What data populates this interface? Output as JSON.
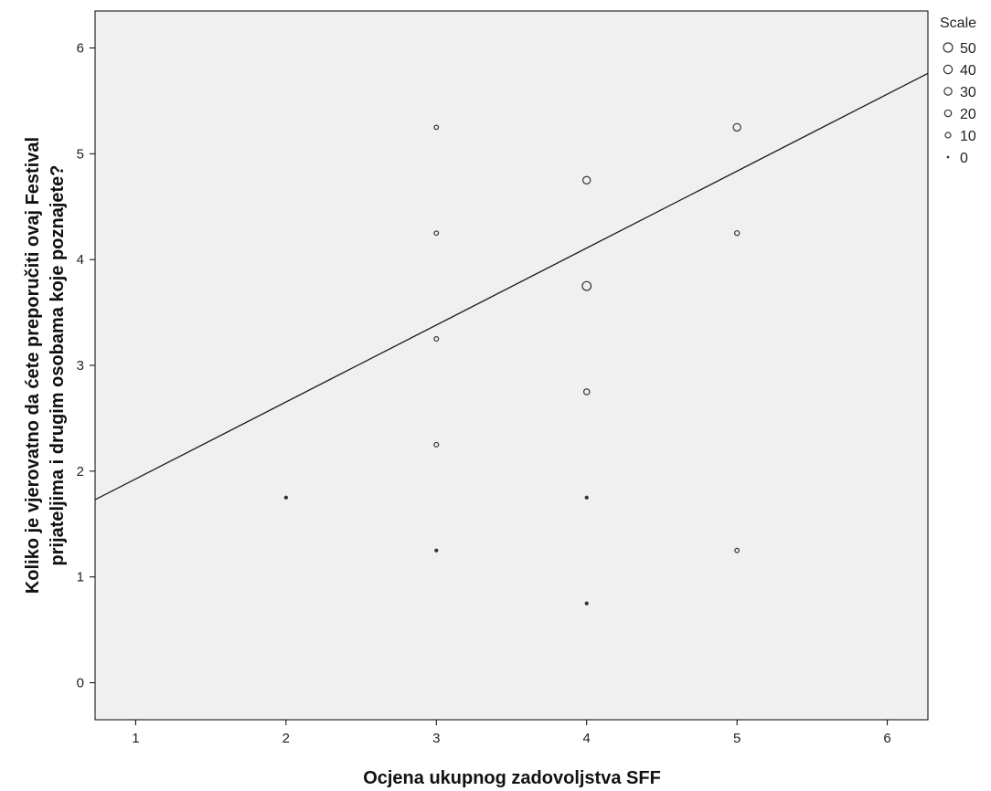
{
  "chart_data": {
    "type": "scatter",
    "xlabel": "Ocjena ukupnog zadovoljstva SFF",
    "ylabel_lines": [
      "Koliko je vjerovatno da ćete preporučiti ovaj Festival",
      "prijateljima i drugim osobama koje poznajete?"
    ],
    "xlim": [
      0.73,
      6.27
    ],
    "ylim": [
      -0.35,
      6.35
    ],
    "xticks": [
      1,
      2,
      3,
      4,
      5,
      6
    ],
    "yticks": [
      0,
      1,
      2,
      3,
      4,
      5,
      6
    ],
    "grid": false,
    "plot_background": "#f0f0f0",
    "fit_line": {
      "x": [
        0.73,
        6.27
      ],
      "y": [
        1.73,
        5.76
      ]
    },
    "points": [
      {
        "x": 2,
        "y": 1.75,
        "size": 2
      },
      {
        "x": 3,
        "y": 5.25,
        "size": 3
      },
      {
        "x": 3,
        "y": 4.25,
        "size": 3
      },
      {
        "x": 3,
        "y": 3.25,
        "size": 4
      },
      {
        "x": 3,
        "y": 2.25,
        "size": 4
      },
      {
        "x": 3,
        "y": 1.25,
        "size": 2
      },
      {
        "x": 4,
        "y": 4.75,
        "size": 28
      },
      {
        "x": 4,
        "y": 3.75,
        "size": 45
      },
      {
        "x": 4,
        "y": 2.75,
        "size": 12
      },
      {
        "x": 4,
        "y": 1.75,
        "size": 2
      },
      {
        "x": 4,
        "y": 0.75,
        "size": 2
      },
      {
        "x": 5,
        "y": 5.25,
        "size": 28
      },
      {
        "x": 5,
        "y": 4.25,
        "size": 5
      },
      {
        "x": 5,
        "y": 1.25,
        "size": 3
      }
    ],
    "legend": {
      "title": "Scale",
      "placement": "right",
      "entries": [
        {
          "label": "50",
          "size": 50
        },
        {
          "label": "40",
          "size": 40
        },
        {
          "label": "30",
          "size": 30
        },
        {
          "label": "20",
          "size": 20
        },
        {
          "label": "10",
          "size": 10
        },
        {
          "label": "0",
          "size": 0
        }
      ]
    }
  }
}
